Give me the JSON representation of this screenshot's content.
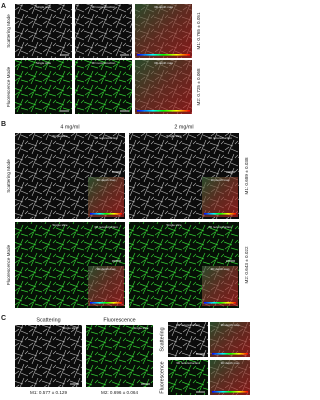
{
  "panel_a": {
    "letter": "A",
    "row_labels": [
      "Scattering Mode",
      "Fluorescence Mode"
    ],
    "column_labels": [
      "Single slice",
      "3D reconstruction",
      "3D depth map"
    ],
    "metrics": [
      "M1: 0.765 ± 0.051",
      "M2: 0.725 ± 0.068"
    ]
  },
  "panel_b": {
    "letter": "B",
    "column_headers": [
      "4 mg/ml",
      "2 mg/ml"
    ],
    "row_labels": [
      "Scattering Mode",
      "Fluorescence Mode"
    ],
    "inset_labels": [
      "Single slice",
      "3D reconstruction",
      "3D depth map"
    ],
    "metrics": [
      "M1: 0.689 ± 0.038",
      "M2: 0.643 ± 0.022"
    ]
  },
  "panel_c": {
    "letter": "C",
    "column_headers": [
      "Scattering",
      "Fluorescence"
    ],
    "inset_label": "Single slice",
    "metrics": [
      "M1: 0.577 ± 0.129",
      "M2: 0.696 ± 0.064"
    ],
    "row_labels": [
      "Scattering",
      "Fluorescence"
    ],
    "inset_labels": [
      "3D reconstruction",
      "3D depth map"
    ]
  }
}
